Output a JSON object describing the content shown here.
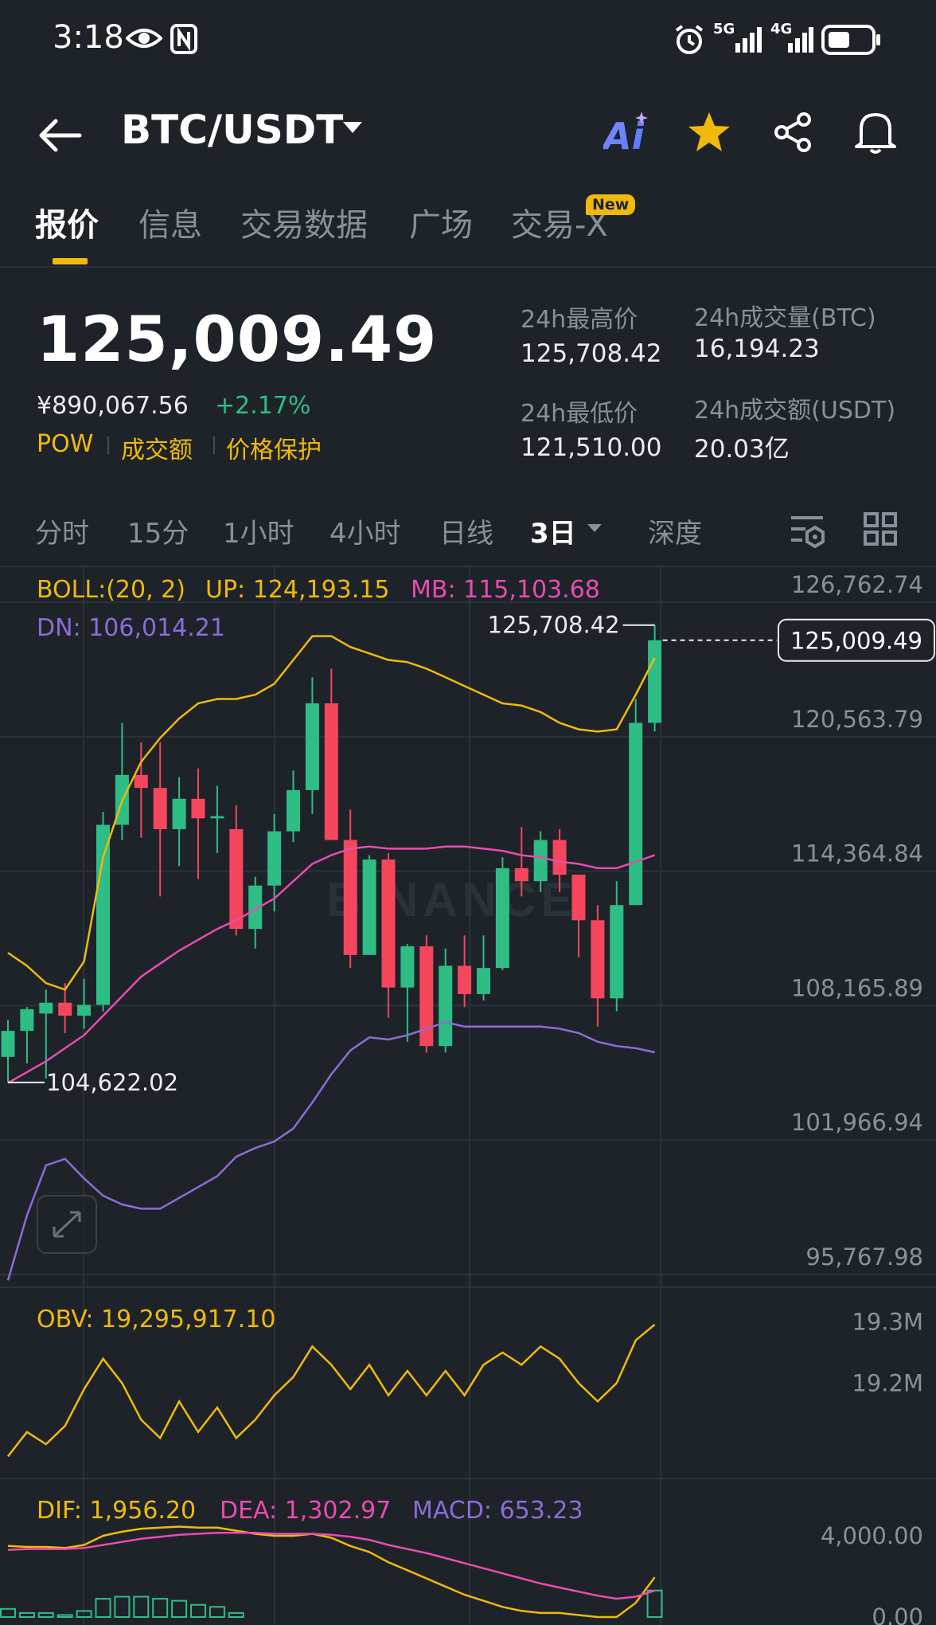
{
  "status_bar": {
    "time": "3:18",
    "icons": [
      "eye-icon",
      "nfc-icon",
      "alarm-icon",
      "signal-5g-icon",
      "signal-4g-icon",
      "battery-icon"
    ],
    "network_labels": [
      "5G",
      "4G"
    ]
  },
  "header": {
    "title": "BTC/USDT",
    "ai_label": "Ai",
    "icons": [
      "back-arrow-icon",
      "caret-down-icon",
      "star-icon",
      "share-icon",
      "bell-icon"
    ]
  },
  "tabs": [
    {
      "label": "报价",
      "active": true
    },
    {
      "label": "信息",
      "active": false
    },
    {
      "label": "交易数据",
      "active": false
    },
    {
      "label": "广场",
      "active": false
    },
    {
      "label": "交易-X",
      "active": false,
      "badge": "New"
    }
  ],
  "price": {
    "last": "125,009.49",
    "cny": "¥890,067.56",
    "change": "+2.17%",
    "tags": [
      "POW",
      "成交额",
      "价格保护"
    ]
  },
  "stats": {
    "high_label": "24h最高价",
    "high": "125,708.42",
    "low_label": "24h最低价",
    "low": "121,510.00",
    "vol_btc_label": "24h成交量(BTC)",
    "vol_btc": "16,194.23",
    "vol_usdt_label": "24h成交额(USDT)",
    "vol_usdt": "20.03亿"
  },
  "timeframes": [
    {
      "label": "分时",
      "active": false
    },
    {
      "label": "15分",
      "active": false
    },
    {
      "label": "1小时",
      "active": false
    },
    {
      "label": "4小时",
      "active": false
    },
    {
      "label": "日线",
      "active": false
    },
    {
      "label": "3日",
      "active": true
    },
    {
      "label": "深度",
      "active": false
    }
  ],
  "colors": {
    "up": "#2ebd85",
    "down": "#f6465d",
    "accent": "#f0b90b",
    "boll_up": "#f0b90b",
    "boll_mb": "#e94bb0",
    "boll_dn": "#8b6cd6"
  },
  "chart_data": {
    "type": "candlestick",
    "watermark": "BINANCE",
    "y_ticks": [
      "126,762.74",
      "120,563.79",
      "114,364.84",
      "108,165.89",
      "101,966.94",
      "95,767.98"
    ],
    "y_tick_values": [
      126762.74,
      120563.79,
      114364.84,
      108165.89,
      101966.94,
      95767.98
    ],
    "ylim": [
      95767.98,
      126762.74
    ],
    "current_price_label": "125,009.49",
    "current_price": 125009.49,
    "high_marker_label": "125,708.42",
    "high_marker": 125708.42,
    "low_marker_label": "104,622.02",
    "low_marker": 104622.02,
    "boll_legend": {
      "name": "BOLL:(20, 2)",
      "up": "UP: 124,193.15",
      "mb": "MB: 115,103.68",
      "dn": "DN: 106,014.21"
    },
    "candles": [
      [
        105800,
        107500,
        104622,
        107000
      ],
      [
        107000,
        108100,
        105500,
        108000
      ],
      [
        107800,
        108900,
        104800,
        108300
      ],
      [
        108300,
        109200,
        106900,
        107700
      ],
      [
        107700,
        109400,
        107100,
        108200
      ],
      [
        108200,
        117100,
        107900,
        116500
      ],
      [
        116500,
        121200,
        115800,
        118800
      ],
      [
        118800,
        120300,
        115900,
        118200
      ],
      [
        118200,
        120300,
        113200,
        116300
      ],
      [
        116300,
        118700,
        114600,
        117700
      ],
      [
        117700,
        119100,
        114000,
        116800
      ],
      [
        116800,
        118300,
        115200,
        116900
      ],
      [
        116300,
        117400,
        111400,
        111700
      ],
      [
        111700,
        114100,
        110800,
        113700
      ],
      [
        113700,
        117000,
        112500,
        116200
      ],
      [
        116200,
        119000,
        115700,
        118100
      ],
      [
        118100,
        123300,
        117000,
        122100
      ],
      [
        122100,
        123700,
        115800,
        115800
      ],
      [
        115800,
        117200,
        109900,
        110500
      ],
      [
        110500,
        115100,
        110500,
        114900
      ],
      [
        114900,
        115200,
        107600,
        109000
      ],
      [
        109000,
        111000,
        106500,
        110900
      ],
      [
        110900,
        111400,
        106000,
        106300
      ],
      [
        106300,
        110800,
        106000,
        110000
      ],
      [
        110000,
        111400,
        108100,
        108700
      ],
      [
        108700,
        111400,
        108400,
        109900
      ],
      [
        109900,
        115000,
        109800,
        114500
      ],
      [
        114500,
        116400,
        113200,
        113900
      ],
      [
        113900,
        116200,
        113400,
        115800
      ],
      [
        115800,
        116300,
        113400,
        114200
      ],
      [
        114200,
        114200,
        110400,
        112100
      ],
      [
        112100,
        112800,
        107200,
        108500
      ],
      [
        108500,
        113900,
        107900,
        112800
      ],
      [
        112800,
        122300,
        112800,
        121200
      ],
      [
        121200,
        125708.42,
        120800,
        125009.49
      ]
    ],
    "boll_up": [
      110600,
      110000,
      109200,
      108900,
      110200,
      115000,
      117600,
      119400,
      120500,
      121400,
      122100,
      122300,
      122300,
      122500,
      123000,
      124100,
      125200,
      125200,
      124700,
      124400,
      124100,
      124000,
      123700,
      123300,
      122900,
      122500,
      122100,
      122000,
      121700,
      121200,
      120900,
      120800,
      120900,
      122500,
      124193.15
    ],
    "boll_mb": [
      104600,
      105100,
      105600,
      106200,
      106800,
      107700,
      108600,
      109500,
      110100,
      110700,
      111200,
      111700,
      112100,
      112600,
      113100,
      113900,
      114700,
      115100,
      115400,
      115500,
      115400,
      115400,
      115400,
      115500,
      115500,
      115400,
      115300,
      115100,
      115000,
      114800,
      114700,
      114500,
      114500,
      114800,
      115103.68
    ],
    "boll_dn": [
      95500,
      98500,
      100800,
      101100,
      100200,
      99400,
      99000,
      98800,
      98800,
      99300,
      99800,
      100300,
      101200,
      101600,
      101900,
      102500,
      103700,
      105000,
      106100,
      106700,
      106600,
      106800,
      107100,
      107400,
      107200,
      107200,
      107200,
      107200,
      107200,
      107100,
      106900,
      106500,
      106300,
      106200,
      106014.21
    ],
    "obv": {
      "label": "OBV: 19,295,917.10",
      "ticks": [
        "19.3M",
        "19.2M"
      ],
      "tick_values": [
        19300000,
        19200000
      ],
      "values": [
        19080000,
        19120000,
        19100000,
        19130000,
        19190000,
        19240000,
        19200000,
        19140000,
        19110000,
        19170000,
        19120000,
        19160000,
        19110000,
        19140000,
        19180000,
        19210000,
        19260000,
        19230000,
        19190000,
        19230000,
        19180000,
        19220000,
        19180000,
        19220000,
        19180000,
        19230000,
        19250000,
        19230000,
        19260000,
        19240000,
        19200000,
        19170000,
        19200000,
        19270000,
        19295917.1
      ]
    },
    "macd": {
      "dif_label": "DIF: 1,956.20",
      "dea_label": "DEA: 1,302.97",
      "macd_label": "MACD: 653.23",
      "ticks": [
        "4,000.00",
        "0.00"
      ],
      "tick_values": [
        4000,
        0
      ],
      "dif": [
        3500,
        3450,
        3450,
        3400,
        3550,
        4000,
        4200,
        4350,
        4400,
        4450,
        4400,
        4400,
        4250,
        4100,
        4000,
        4000,
        4100,
        3900,
        3500,
        3200,
        2700,
        2300,
        1900,
        1500,
        1100,
        800,
        500,
        300,
        200,
        200,
        100,
        0,
        0,
        700,
        1956.2
      ],
      "dea": [
        3300,
        3350,
        3350,
        3350,
        3400,
        3550,
        3700,
        3850,
        3950,
        4050,
        4100,
        4150,
        4150,
        4150,
        4100,
        4100,
        4100,
        4050,
        3950,
        3800,
        3550,
        3350,
        3150,
        2900,
        2650,
        2400,
        2150,
        1900,
        1650,
        1450,
        1250,
        1050,
        900,
        1000,
        1302.97
      ]
    }
  }
}
